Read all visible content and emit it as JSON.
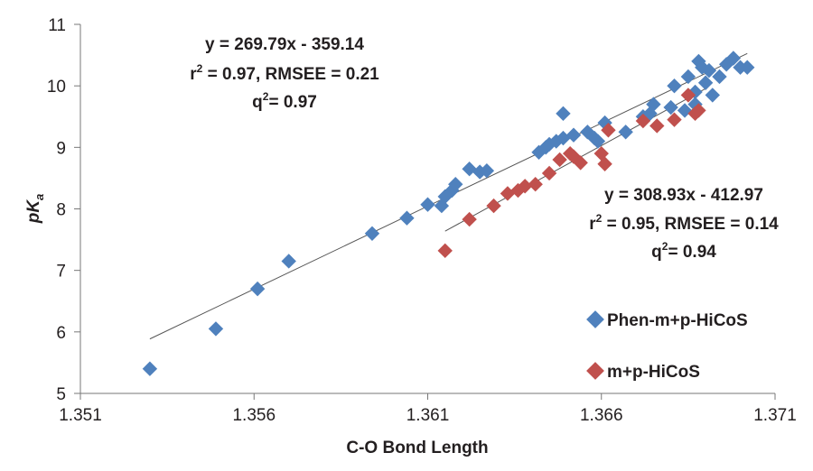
{
  "chart_data": {
    "type": "scatter",
    "title": "",
    "xlabel": "C-O Bond Length",
    "ylabel_main": "pK",
    "ylabel_sub": "a",
    "xlim": [
      1.351,
      1.371
    ],
    "ylim": [
      5,
      11
    ],
    "x_ticks": [
      "1.351",
      "1.356",
      "1.361",
      "1.366",
      "1.371"
    ],
    "y_ticks": [
      "5",
      "6",
      "7",
      "8",
      "9",
      "10",
      "11"
    ],
    "grid": false,
    "legend_position": "right",
    "series": [
      {
        "name": "Phen-m+p-HiCoS",
        "color": "#4f81bd",
        "marker": "diamond",
        "points": [
          [
            1.353,
            5.4
          ],
          [
            1.3549,
            6.05
          ],
          [
            1.3561,
            6.7
          ],
          [
            1.357,
            7.15
          ],
          [
            1.3594,
            7.6
          ],
          [
            1.3604,
            7.85
          ],
          [
            1.361,
            8.07
          ],
          [
            1.3614,
            8.05
          ],
          [
            1.3615,
            8.2
          ],
          [
            1.3617,
            8.3
          ],
          [
            1.3618,
            8.4
          ],
          [
            1.3622,
            8.65
          ],
          [
            1.3625,
            8.6
          ],
          [
            1.3627,
            8.62
          ],
          [
            1.3642,
            8.92
          ],
          [
            1.3644,
            9.0
          ],
          [
            1.3645,
            9.05
          ],
          [
            1.3647,
            9.1
          ],
          [
            1.3649,
            9.15
          ],
          [
            1.3652,
            9.2
          ],
          [
            1.3649,
            9.55
          ],
          [
            1.3656,
            9.25
          ],
          [
            1.3658,
            9.15
          ],
          [
            1.3659,
            9.1
          ],
          [
            1.3661,
            9.4
          ],
          [
            1.3667,
            9.25
          ],
          [
            1.3672,
            9.5
          ],
          [
            1.3674,
            9.55
          ],
          [
            1.3675,
            9.7
          ],
          [
            1.368,
            9.65
          ],
          [
            1.3681,
            10.0
          ],
          [
            1.3684,
            9.6
          ],
          [
            1.3685,
            10.15
          ],
          [
            1.3687,
            9.7
          ],
          [
            1.3687,
            9.9
          ],
          [
            1.3688,
            10.4
          ],
          [
            1.3689,
            10.3
          ],
          [
            1.369,
            10.05
          ],
          [
            1.3691,
            10.25
          ],
          [
            1.3692,
            9.85
          ],
          [
            1.3694,
            10.15
          ],
          [
            1.3696,
            10.35
          ],
          [
            1.3698,
            10.45
          ],
          [
            1.37,
            10.3
          ],
          [
            1.3702,
            10.3
          ]
        ]
      },
      {
        "name": "m+p-HiCoS",
        "color": "#c0504d",
        "marker": "diamond",
        "points": [
          [
            1.3615,
            7.32
          ],
          [
            1.3622,
            7.83
          ],
          [
            1.3629,
            8.05
          ],
          [
            1.3633,
            8.25
          ],
          [
            1.3636,
            8.3
          ],
          [
            1.3638,
            8.37
          ],
          [
            1.3641,
            8.4
          ],
          [
            1.3645,
            8.58
          ],
          [
            1.3648,
            8.8
          ],
          [
            1.3651,
            8.9
          ],
          [
            1.3652,
            8.85
          ],
          [
            1.3654,
            8.75
          ],
          [
            1.366,
            8.9
          ],
          [
            1.3661,
            8.73
          ],
          [
            1.3662,
            9.28
          ],
          [
            1.3672,
            9.43
          ],
          [
            1.3676,
            9.35
          ],
          [
            1.3681,
            9.45
          ],
          [
            1.3685,
            9.85
          ],
          [
            1.3687,
            9.55
          ],
          [
            1.3688,
            9.6
          ]
        ]
      }
    ],
    "trendlines": [
      {
        "series": "Phen-m+p-HiCoS",
        "x_range": [
          1.353,
          1.3702
        ],
        "slope": 269.79,
        "intercept": -359.14
      },
      {
        "series": "m+p-HiCoS",
        "x_range": [
          1.3615,
          1.369
        ],
        "slope": 308.93,
        "intercept": -412.97
      }
    ],
    "annotations": [
      {
        "id": "fit1",
        "lines": [
          "y = 269.79x - 359.14",
          "r",
          "2",
          " = 0.97, RMSEE = 0.21",
          "q",
          "2",
          "= 0.97"
        ]
      },
      {
        "id": "fit2",
        "lines": [
          "y = 308.93x - 412.97",
          "r",
          "2",
          " = 0.95, RMSEE = 0.14",
          "q",
          "2",
          "= 0.94"
        ]
      }
    ]
  }
}
